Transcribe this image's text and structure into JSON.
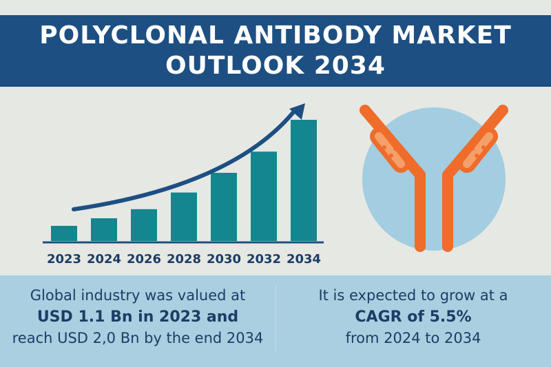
{
  "header": {
    "title_line1": "POLYCLONAL ANTIBODY MARKET",
    "title_line2": "OUTLOOK 2034"
  },
  "colors": {
    "header_bg": "#1d4f82",
    "bar": "#13868f",
    "arrow": "#1d4f82",
    "antibody_orange": "#ef6c2b",
    "antibody_highlight": "#f5a06a",
    "circle": "#a3cde0",
    "bottom_bg": "#a9cfe0",
    "text_dark": "#1c3d66"
  },
  "chart_data": {
    "type": "bar",
    "categories": [
      "2023",
      "2024",
      "2026",
      "2028",
      "2030",
      "2032",
      "2034"
    ],
    "values": [
      1.0,
      1.5,
      2.1,
      3.2,
      4.5,
      5.9,
      8.0
    ],
    "title": "",
    "xlabel": "",
    "ylabel": "",
    "ylim": [
      0,
      10
    ],
    "trend_arrow": "rising",
    "grid": false
  },
  "icons": {
    "antibody": "antibody-icon"
  },
  "panels": {
    "left": {
      "line1": "Global industry was valued at",
      "line2": "USD 1.1 Bn in 2023 and",
      "line3": "reach USD 2,0 Bn by the end 2034"
    },
    "right": {
      "line1": "It is expected to grow at a",
      "line2": "CAGR of 5.5%",
      "line3": "from 2024 to 2034"
    }
  }
}
